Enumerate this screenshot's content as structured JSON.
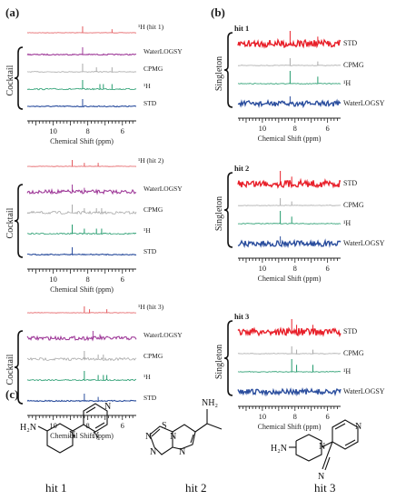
{
  "panel_labels": {
    "a": "(a)",
    "b": "(b)",
    "c": "(c)"
  },
  "xlabel": "Chemical Shift (ppm)",
  "tick_labels": [
    "10",
    "8",
    "6"
  ],
  "group_labels": {
    "cocktail": "Cocktail",
    "singleton": "Singleton"
  },
  "colors": {
    "ref": "#e3585c",
    "waterlogsy": "#a03c9a",
    "cpmg": "#a9a9a9",
    "h1": "#239b6d",
    "std": "#2b4e9e",
    "std_singleton": "#e8202a"
  },
  "trace_labels": {
    "a1": {
      "ref": "¹H (hit 1)",
      "waterlogsy": "WaterLOGSY",
      "cpmg": "CPMG",
      "h1": "¹H",
      "std": "STD"
    },
    "a2": {
      "ref": "¹H (hit 2)",
      "waterlogsy": "WaterLOGSY",
      "cpmg": "CPMG",
      "h1": "¹H",
      "std": "STD"
    },
    "a3": {
      "ref": "¹H (hit 3)",
      "waterlogsy": "WaterLOGSY",
      "cpmg": "CPMG",
      "h1": "¹H",
      "std": "STD"
    },
    "b1": {
      "hit": "hit 1",
      "std": "STD",
      "cpmg": "CPMG",
      "h1": "¹H",
      "waterlogsy": "WaterLOGSY"
    },
    "b2": {
      "hit": "hit 2",
      "std": "STD",
      "cpmg": "CPMG",
      "h1": "¹H",
      "waterlogsy": "WaterLOGSY"
    },
    "b3": {
      "hit": "hit 3",
      "std": "STD",
      "cpmg": "CPMG",
      "h1": "¹H",
      "waterlogsy": "WaterLOGSY"
    }
  },
  "structures": {
    "hit1": {
      "label": "hit 1",
      "atoms": [
        "H₂N",
        "N",
        "N",
        "N"
      ]
    },
    "hit2": {
      "label": "hit 2",
      "atoms": [
        "NH₂",
        "S",
        "N",
        "N",
        "N",
        "N"
      ]
    },
    "hit3": {
      "label": "hit 3",
      "atoms": [
        "H₂N",
        "N",
        "N",
        "N"
      ]
    }
  },
  "chart_data": [
    {
      "type": "line",
      "panel": "a-hit1",
      "xlabel": "Chemical Shift (ppm)",
      "xlim": [
        11.5,
        5.2
      ],
      "x_reversed": true,
      "series": [
        {
          "name": "¹H (hit 1)",
          "peaks_ppm": [
            8.3,
            6.6
          ]
        },
        {
          "name": "WaterLOGSY",
          "peaks_ppm": [
            8.3
          ]
        },
        {
          "name": "CPMG",
          "peaks_ppm": [
            8.3,
            7.5,
            6.6
          ]
        },
        {
          "name": "¹H",
          "peaks_ppm": [
            8.3,
            7.3,
            7.1,
            6.6
          ]
        },
        {
          "name": "STD",
          "peaks_ppm": [
            8.3
          ]
        }
      ]
    },
    {
      "type": "line",
      "panel": "a-hit2",
      "xlabel": "Chemical Shift (ppm)",
      "xlim": [
        11.5,
        5.2
      ],
      "x_reversed": true,
      "series": [
        {
          "name": "¹H (hit 2)",
          "peaks_ppm": [
            8.9,
            8.2,
            7.4
          ]
        },
        {
          "name": "WaterLOGSY",
          "peaks_ppm": [
            8.9,
            8.2
          ]
        },
        {
          "name": "CPMG",
          "peaks_ppm": [
            8.9,
            8.2,
            7.5,
            7.2
          ]
        },
        {
          "name": "¹H",
          "peaks_ppm": [
            8.9,
            8.2,
            7.5,
            7.2
          ]
        },
        {
          "name": "STD",
          "peaks_ppm": [
            8.9
          ]
        }
      ]
    },
    {
      "type": "line",
      "panel": "a-hit3",
      "xlabel": "Chemical Shift (ppm)",
      "xlim": [
        11.5,
        5.2
      ],
      "x_reversed": true,
      "series": [
        {
          "name": "¹H (hit 3)",
          "peaks_ppm": [
            8.2,
            7.9,
            6.9
          ]
        },
        {
          "name": "WaterLOGSY",
          "peaks_ppm": [
            7.7,
            7.3
          ]
        },
        {
          "name": "CPMG",
          "peaks_ppm": [
            8.2,
            7.4,
            7.1
          ]
        },
        {
          "name": "¹H",
          "peaks_ppm": [
            8.2,
            7.4,
            7.1,
            6.9
          ]
        },
        {
          "name": "STD",
          "peaks_ppm": [
            8.2,
            7.4
          ]
        }
      ]
    },
    {
      "type": "line",
      "panel": "b-hit1",
      "xlabel": "Chemical Shift (ppm)",
      "xlim": [
        11.5,
        5.2
      ],
      "x_reversed": true,
      "series": [
        {
          "name": "STD",
          "peaks_ppm": [
            8.3,
            6.6
          ]
        },
        {
          "name": "CPMG",
          "peaks_ppm": [
            8.3,
            6.6
          ]
        },
        {
          "name": "¹H",
          "peaks_ppm": [
            8.3,
            6.6
          ]
        },
        {
          "name": "WaterLOGSY",
          "peaks_ppm": [
            8.3
          ]
        }
      ]
    },
    {
      "type": "line",
      "panel": "b-hit2",
      "xlabel": "Chemical Shift (ppm)",
      "xlim": [
        11.5,
        5.2
      ],
      "x_reversed": true,
      "series": [
        {
          "name": "STD",
          "peaks_ppm": [
            8.9,
            8.2
          ]
        },
        {
          "name": "CPMG",
          "peaks_ppm": [
            8.9,
            8.2
          ]
        },
        {
          "name": "¹H",
          "peaks_ppm": [
            8.9,
            8.2
          ]
        },
        {
          "name": "WaterLOGSY",
          "peaks_ppm": [
            8.9
          ]
        }
      ]
    },
    {
      "type": "line",
      "panel": "b-hit3",
      "xlabel": "Chemical Shift (ppm)",
      "xlim": [
        11.5,
        5.2
      ],
      "x_reversed": true,
      "series": [
        {
          "name": "STD",
          "peaks_ppm": [
            8.2,
            7.9,
            6.9
          ]
        },
        {
          "name": "CPMG",
          "peaks_ppm": [
            8.2,
            7.9,
            6.9
          ]
        },
        {
          "name": "¹H",
          "peaks_ppm": [
            8.2,
            7.9,
            6.9
          ]
        },
        {
          "name": "WaterLOGSY",
          "peaks_ppm": []
        }
      ]
    }
  ]
}
